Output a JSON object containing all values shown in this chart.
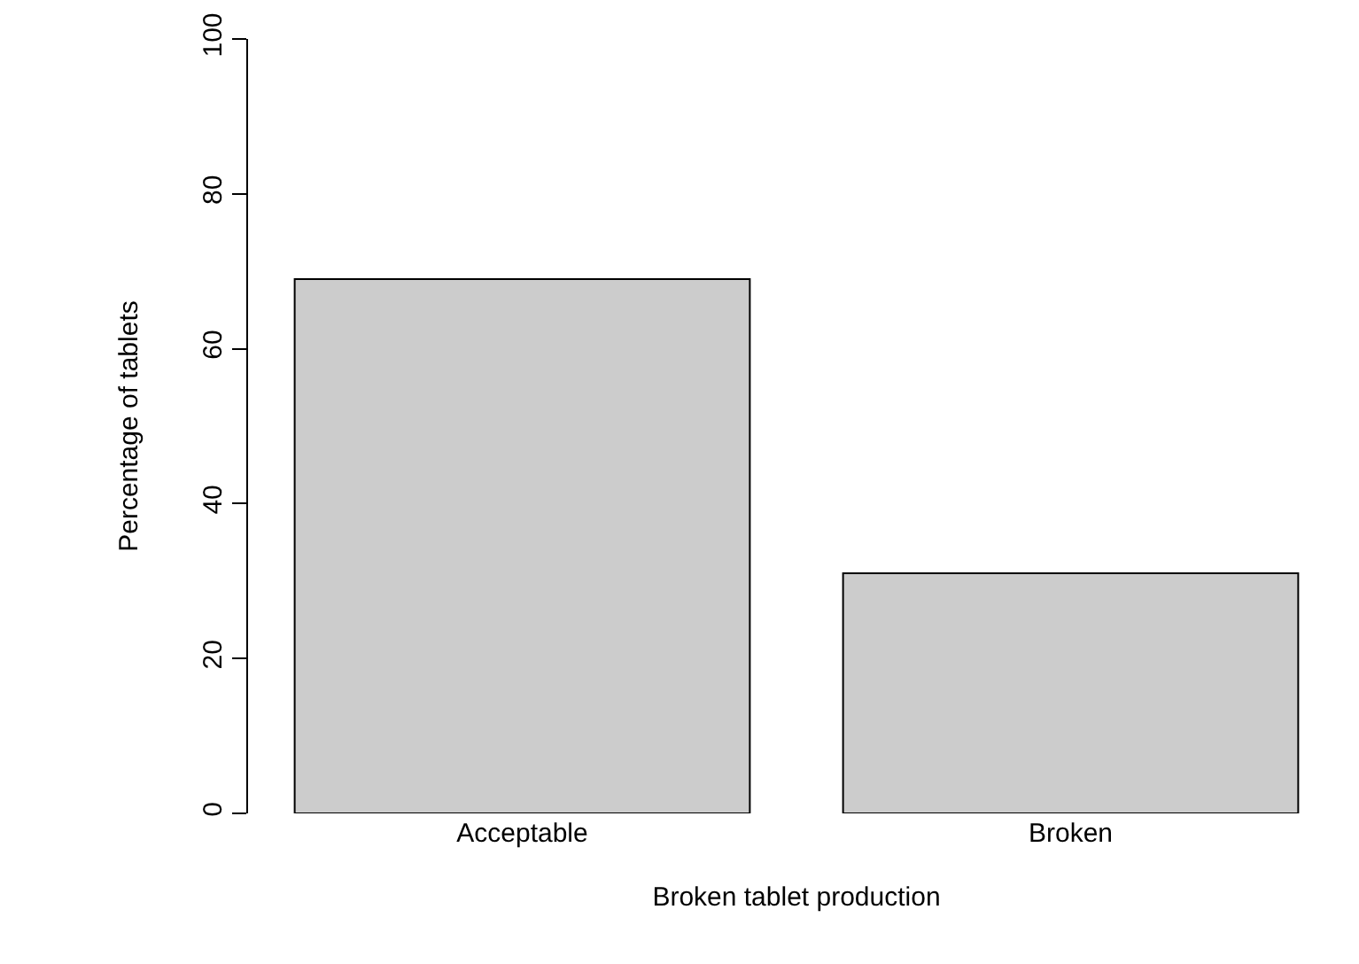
{
  "chart_data": {
    "type": "bar",
    "xlabel": "Broken tablet production",
    "ylabel": "Percentage of tablets",
    "categories": [
      "Acceptable",
      "Broken"
    ],
    "values": [
      69,
      31
    ],
    "color": "#cccccc",
    "ylim": [
      0,
      100
    ],
    "yticks": [
      0,
      20,
      40,
      60,
      80,
      100
    ],
    "grid": false
  }
}
